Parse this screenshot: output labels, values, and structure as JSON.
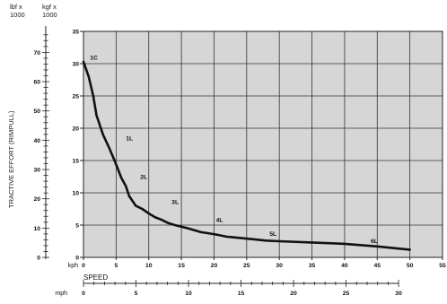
{
  "chart_data": {
    "type": "line",
    "ylabel": "TRACTIVE EFFORT (RIMPULL)",
    "xlabel": "SPEED",
    "units": {
      "lbf_line1": "lbf x",
      "lbf_line2": "1000",
      "kgf_line1": "kgf x",
      "kgf_line2": "1000",
      "kph": "kph",
      "mph": "mph"
    },
    "kgf_axis": {
      "ylim": [
        0,
        35
      ],
      "ticks": [
        "0",
        "5",
        "10",
        "15",
        "20",
        "25",
        "30",
        "35"
      ]
    },
    "lbf_axis": {
      "ylim": [
        0,
        77.16
      ],
      "ticks": [
        "0",
        "10",
        "20",
        "30",
        "40",
        "50",
        "60",
        "70"
      ]
    },
    "kph_axis": {
      "xlim": [
        0,
        55
      ],
      "ticks": [
        "0",
        "5",
        "10",
        "15",
        "20",
        "25",
        "30",
        "35",
        "40",
        "45",
        "50",
        "55"
      ]
    },
    "mph_axis": {
      "xlim": [
        0,
        34.18
      ],
      "ticks": [
        "0",
        "5",
        "10",
        "15",
        "20",
        "25",
        "30"
      ]
    },
    "grid": true,
    "series": [
      {
        "x_kph": [
          0,
          0.8,
          1.5,
          2,
          3,
          4,
          4.8,
          5.8,
          6.5,
          7,
          8,
          9,
          10,
          11,
          12,
          13,
          14,
          16,
          18,
          20,
          22,
          25,
          28,
          30,
          35,
          40,
          45,
          50
        ],
        "y_kgf": [
          30.3,
          28,
          25,
          22,
          19,
          16.8,
          14.9,
          12.3,
          11,
          9.5,
          8,
          7.5,
          6.8,
          6.2,
          5.8,
          5.3,
          5,
          4.5,
          3.9,
          3.6,
          3.2,
          2.9,
          2.6,
          2.5,
          2.3,
          2.1,
          1.7,
          1.2
        ]
      }
    ],
    "annotations": [
      {
        "text": "1C",
        "x": 1.0,
        "y": 31
      },
      {
        "text": "1L",
        "x": 6.5,
        "y": 18.5
      },
      {
        "text": "2L",
        "x": 8.7,
        "y": 12.5
      },
      {
        "text": "3L",
        "x": 13.5,
        "y": 8.6
      },
      {
        "text": "4L",
        "x": 20.3,
        "y": 5.8
      },
      {
        "text": "5L",
        "x": 28.5,
        "y": 3.7
      },
      {
        "text": "6L",
        "x": 44,
        "y": 2.6
      }
    ]
  }
}
